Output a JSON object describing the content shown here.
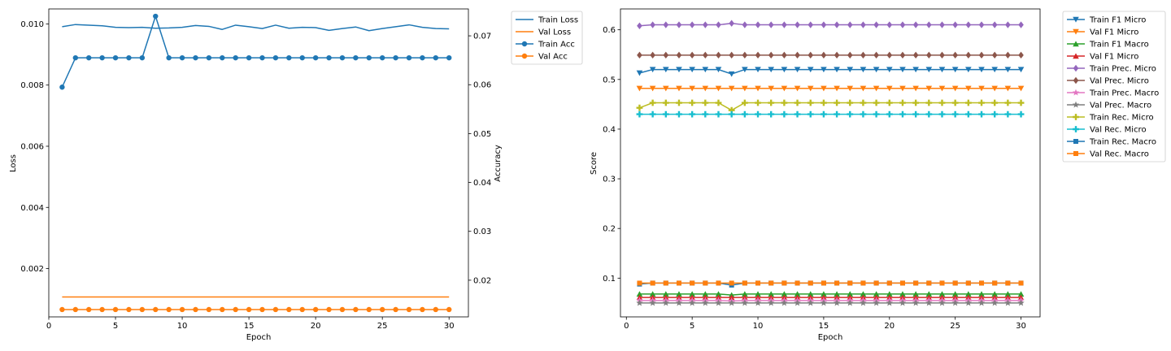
{
  "chart_data": [
    {
      "type": "line",
      "xlabel": "Epoch",
      "ylabel": "Loss",
      "y2label": "Accuracy",
      "x": [
        1,
        2,
        3,
        4,
        5,
        6,
        7,
        8,
        9,
        10,
        11,
        12,
        13,
        14,
        15,
        16,
        17,
        18,
        19,
        20,
        21,
        22,
        23,
        24,
        25,
        26,
        27,
        28,
        29,
        30
      ],
      "xlim": [
        0,
        31.45
      ],
      "xticks": [
        0,
        5,
        10,
        15,
        20,
        25,
        30
      ],
      "ylim": [
        0.00042,
        0.01049
      ],
      "yticks": [
        0.002,
        0.004,
        0.006,
        0.008,
        0.01
      ],
      "ytick_labels": [
        "0.002",
        "0.004",
        "0.006",
        "0.008",
        "0.010"
      ],
      "y2lim": [
        0.0125,
        0.0755
      ],
      "y2ticks": [
        0.02,
        0.03,
        0.04,
        0.05,
        0.06,
        0.07
      ],
      "y2tick_labels": [
        "0.02",
        "0.03",
        "0.04",
        "0.05",
        "0.06",
        "0.07"
      ],
      "legend_position": "outside-upper-right",
      "legend": [
        "Train Loss",
        "Val Loss",
        "Train Acc",
        "Val Acc"
      ],
      "series": [
        {
          "name": "Train Loss",
          "axis": "left",
          "color": "#1f77b4",
          "marker": "none",
          "values": [
            0.00991,
            0.00998,
            0.00996,
            0.00994,
            0.00989,
            0.00988,
            0.00989,
            0.00986,
            0.00987,
            0.00989,
            0.00995,
            0.00992,
            0.00982,
            0.00996,
            0.00991,
            0.00985,
            0.00996,
            0.00986,
            0.00989,
            0.00988,
            0.00979,
            0.00985,
            0.0099,
            0.00978,
            0.00985,
            0.00991,
            0.00997,
            0.00989,
            0.00985,
            0.00984
          ]
        },
        {
          "name": "Val Loss",
          "axis": "left",
          "color": "#ff7f0e",
          "marker": "none",
          "values": [
            0.00107,
            0.00107,
            0.00107,
            0.00107,
            0.00107,
            0.00107,
            0.00107,
            0.00107,
            0.00107,
            0.00107,
            0.00107,
            0.00107,
            0.00107,
            0.00107,
            0.00107,
            0.00107,
            0.00107,
            0.00107,
            0.00107,
            0.00107,
            0.00107,
            0.00107,
            0.00107,
            0.00107,
            0.00107,
            0.00107,
            0.00107,
            0.00107,
            0.00107,
            0.00107
          ]
        },
        {
          "name": "Train Acc",
          "axis": "right",
          "color": "#1f77b4",
          "marker": "circle",
          "values": [
            0.0595,
            0.0655,
            0.0655,
            0.0655,
            0.0655,
            0.0655,
            0.0655,
            0.074,
            0.0655,
            0.0655,
            0.0655,
            0.0655,
            0.0655,
            0.0655,
            0.0655,
            0.0655,
            0.0655,
            0.0655,
            0.0655,
            0.0655,
            0.0655,
            0.0655,
            0.0655,
            0.0655,
            0.0655,
            0.0655,
            0.0655,
            0.0655,
            0.0655,
            0.0655
          ]
        },
        {
          "name": "Val Acc",
          "axis": "right",
          "color": "#ff7f0e",
          "marker": "circle",
          "values": [
            0.014,
            0.014,
            0.014,
            0.014,
            0.014,
            0.014,
            0.014,
            0.014,
            0.014,
            0.014,
            0.014,
            0.014,
            0.014,
            0.014,
            0.014,
            0.014,
            0.014,
            0.014,
            0.014,
            0.014,
            0.014,
            0.014,
            0.014,
            0.014,
            0.014,
            0.014,
            0.014,
            0.014,
            0.014,
            0.014
          ]
        }
      ]
    },
    {
      "type": "line",
      "xlabel": "Epoch",
      "ylabel": "Score",
      "x": [
        1,
        2,
        3,
        4,
        5,
        6,
        7,
        8,
        9,
        10,
        11,
        12,
        13,
        14,
        15,
        16,
        17,
        18,
        19,
        20,
        21,
        22,
        23,
        24,
        25,
        26,
        27,
        28,
        29,
        30
      ],
      "xlim": [
        -0.45,
        31.45
      ],
      "xticks": [
        0,
        5,
        10,
        15,
        20,
        25,
        30
      ],
      "ylim": [
        0.022,
        0.642
      ],
      "yticks": [
        0.1,
        0.2,
        0.3,
        0.4,
        0.5,
        0.6
      ],
      "ytick_labels": [
        "0.1",
        "0.2",
        "0.3",
        "0.4",
        "0.5",
        "0.6"
      ],
      "legend_position": "outside-upper-right",
      "legend": [
        "Train F1 Micro",
        "Val F1 Micro",
        "Train F1 Macro",
        "Val F1 Micro",
        "Train Prec. Micro",
        "Val Prec. Micro",
        "Train Prec. Macro",
        "Val Prec. Macro",
        "Train Rec. Micro",
        "Val Rec. Micro",
        "Train Rec. Macro",
        "Val Rec. Macro"
      ],
      "series": [
        {
          "name": "Train F1 Micro",
          "color": "#1f77b4",
          "marker": "tri-down",
          "values": [
            0.513,
            0.52,
            0.52,
            0.52,
            0.52,
            0.52,
            0.52,
            0.511,
            0.52,
            0.52,
            0.52,
            0.52,
            0.52,
            0.52,
            0.52,
            0.52,
            0.52,
            0.52,
            0.52,
            0.52,
            0.52,
            0.52,
            0.52,
            0.52,
            0.52,
            0.52,
            0.52,
            0.52,
            0.52,
            0.52
          ]
        },
        {
          "name": "Val F1 Micro",
          "color": "#ff7f0e",
          "marker": "tri-down",
          "values": [
            0.482,
            0.482,
            0.482,
            0.482,
            0.482,
            0.482,
            0.482,
            0.482,
            0.482,
            0.482,
            0.482,
            0.482,
            0.482,
            0.482,
            0.482,
            0.482,
            0.482,
            0.482,
            0.482,
            0.482,
            0.482,
            0.482,
            0.482,
            0.482,
            0.482,
            0.482,
            0.482,
            0.482,
            0.482,
            0.482
          ]
        },
        {
          "name": "Train F1 Macro",
          "color": "#2ca02c",
          "marker": "tri-up",
          "values": [
            0.068,
            0.068,
            0.068,
            0.068,
            0.068,
            0.068,
            0.068,
            0.066,
            0.068,
            0.068,
            0.068,
            0.068,
            0.068,
            0.068,
            0.068,
            0.068,
            0.068,
            0.068,
            0.068,
            0.068,
            0.068,
            0.068,
            0.068,
            0.068,
            0.068,
            0.068,
            0.068,
            0.068,
            0.068,
            0.068
          ]
        },
        {
          "name": "Val F1 Micro",
          "color": "#d62728",
          "marker": "tri-up",
          "values": [
            0.061,
            0.061,
            0.061,
            0.061,
            0.061,
            0.061,
            0.061,
            0.061,
            0.061,
            0.061,
            0.061,
            0.061,
            0.061,
            0.061,
            0.061,
            0.061,
            0.061,
            0.061,
            0.061,
            0.061,
            0.061,
            0.061,
            0.061,
            0.061,
            0.061,
            0.061,
            0.061,
            0.061,
            0.061,
            0.061
          ]
        },
        {
          "name": "Train Prec. Micro",
          "color": "#9467bd",
          "marker": "diamond",
          "values": [
            0.608,
            0.61,
            0.61,
            0.61,
            0.61,
            0.61,
            0.61,
            0.613,
            0.61,
            0.61,
            0.61,
            0.61,
            0.61,
            0.61,
            0.61,
            0.61,
            0.61,
            0.61,
            0.61,
            0.61,
            0.61,
            0.61,
            0.61,
            0.61,
            0.61,
            0.61,
            0.61,
            0.61,
            0.61,
            0.61
          ]
        },
        {
          "name": "Val Prec. Micro",
          "color": "#8c564b",
          "marker": "diamond",
          "values": [
            0.549,
            0.549,
            0.549,
            0.549,
            0.549,
            0.549,
            0.549,
            0.549,
            0.549,
            0.549,
            0.549,
            0.549,
            0.549,
            0.549,
            0.549,
            0.549,
            0.549,
            0.549,
            0.549,
            0.549,
            0.549,
            0.549,
            0.549,
            0.549,
            0.549,
            0.549,
            0.549,
            0.549,
            0.549,
            0.549
          ]
        },
        {
          "name": "Train Prec. Macro",
          "color": "#e377c2",
          "marker": "star",
          "values": [
            0.055,
            0.055,
            0.055,
            0.055,
            0.055,
            0.055,
            0.055,
            0.054,
            0.055,
            0.055,
            0.055,
            0.055,
            0.055,
            0.055,
            0.055,
            0.055,
            0.055,
            0.055,
            0.055,
            0.055,
            0.055,
            0.055,
            0.055,
            0.055,
            0.055,
            0.055,
            0.055,
            0.055,
            0.055,
            0.055
          ]
        },
        {
          "name": "Val Prec. Macro",
          "color": "#7f7f7f",
          "marker": "star",
          "values": [
            0.05,
            0.05,
            0.05,
            0.05,
            0.05,
            0.05,
            0.05,
            0.05,
            0.05,
            0.05,
            0.05,
            0.05,
            0.05,
            0.05,
            0.05,
            0.05,
            0.05,
            0.05,
            0.05,
            0.05,
            0.05,
            0.05,
            0.05,
            0.05,
            0.05,
            0.05,
            0.05,
            0.05,
            0.05,
            0.05
          ]
        },
        {
          "name": "Train Rec. Micro",
          "color": "#bcbd22",
          "marker": "plus",
          "values": [
            0.443,
            0.453,
            0.453,
            0.453,
            0.453,
            0.453,
            0.453,
            0.438,
            0.453,
            0.453,
            0.453,
            0.453,
            0.453,
            0.453,
            0.453,
            0.453,
            0.453,
            0.453,
            0.453,
            0.453,
            0.453,
            0.453,
            0.453,
            0.453,
            0.453,
            0.453,
            0.453,
            0.453,
            0.453,
            0.453
          ]
        },
        {
          "name": "Val Rec. Micro",
          "color": "#17becf",
          "marker": "plus",
          "values": [
            0.43,
            0.43,
            0.43,
            0.43,
            0.43,
            0.43,
            0.43,
            0.43,
            0.43,
            0.43,
            0.43,
            0.43,
            0.43,
            0.43,
            0.43,
            0.43,
            0.43,
            0.43,
            0.43,
            0.43,
            0.43,
            0.43,
            0.43,
            0.43,
            0.43,
            0.43,
            0.43,
            0.43,
            0.43,
            0.43
          ]
        },
        {
          "name": "Train Rec. Macro",
          "color": "#1f77b4",
          "marker": "square",
          "values": [
            0.088,
            0.09,
            0.09,
            0.09,
            0.09,
            0.09,
            0.09,
            0.086,
            0.09,
            0.09,
            0.09,
            0.09,
            0.09,
            0.09,
            0.09,
            0.09,
            0.09,
            0.09,
            0.09,
            0.09,
            0.09,
            0.09,
            0.09,
            0.09,
            0.09,
            0.09,
            0.09,
            0.09,
            0.09,
            0.09
          ]
        },
        {
          "name": "Val Rec. Macro",
          "color": "#ff7f0e",
          "marker": "square",
          "values": [
            0.09,
            0.09,
            0.09,
            0.09,
            0.09,
            0.09,
            0.09,
            0.09,
            0.09,
            0.09,
            0.09,
            0.09,
            0.09,
            0.09,
            0.09,
            0.09,
            0.09,
            0.09,
            0.09,
            0.09,
            0.09,
            0.09,
            0.09,
            0.09,
            0.09,
            0.09,
            0.09,
            0.09,
            0.09,
            0.09
          ]
        }
      ]
    }
  ]
}
